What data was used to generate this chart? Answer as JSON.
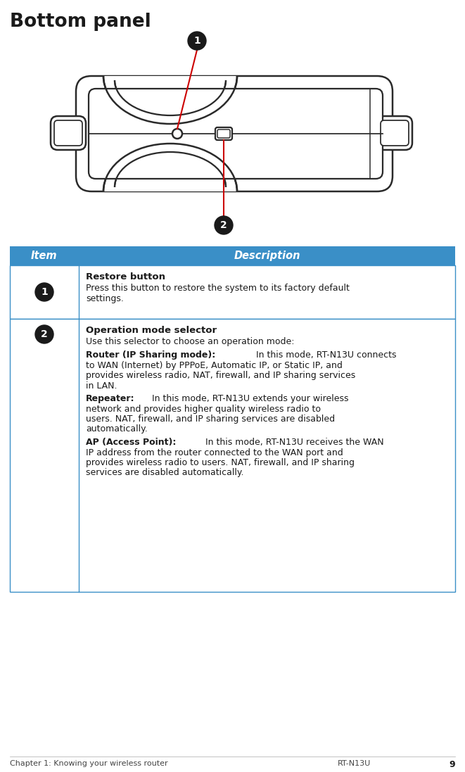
{
  "title": "Bottom panel",
  "title_fontsize": 19,
  "bg_color": "#ffffff",
  "header_bg": "#3A8FC7",
  "header_text_color": "#ffffff",
  "header_item": "Item",
  "header_desc": "Description",
  "header_fontsize": 10.5,
  "table_border_color": "#3A8FC7",
  "table_text_color": "#1a1a1a",
  "row1_title": "Restore button",
  "row1_body_lines": [
    "Press this button to restore the system to its factory default",
    "settings."
  ],
  "row2_title": "Operation mode selector",
  "row2_intro": "Use this selector to choose an operation mode:",
  "row2_p1_bold": "Router (IP Sharing mode):",
  "row2_p1_lines": [
    " In this mode, RT-N13U connects",
    "to WAN (Internet) by PPPoE, Automatic IP, or Static IP, and",
    "provides wireless radio, NAT, firewall, and IP sharing services",
    "in LAN."
  ],
  "row2_p2_bold": "Repeater:",
  "row2_p2_lines": [
    " In this mode, RT-N13U extends your wireless",
    "network and provides higher quality wireless radio to",
    "users. NAT, firewall, and IP sharing services are disabled",
    "automatically."
  ],
  "row2_p3_bold": "AP (Access Point):",
  "row2_p3_lines": [
    " In this mode, RT-N13U receives the WAN",
    "IP address from the router connected to the WAN port and",
    "provides wireless radio to users. NAT, firewall, and IP sharing",
    "services are disabled automatically."
  ],
  "footer_left": "Chapter 1: Knowing your wireless router",
  "footer_right": "RT-N13U",
  "footer_page": "9",
  "footer_fontsize": 8,
  "red_color": "#cc0000",
  "diagram_line_color": "#2a2a2a",
  "diagram_lw": 1.8
}
